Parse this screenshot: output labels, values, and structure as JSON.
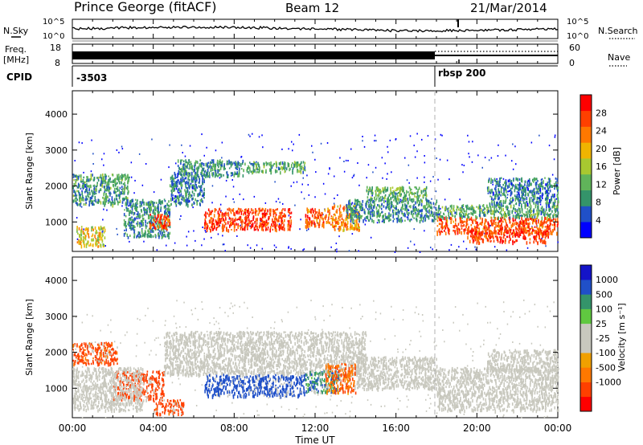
{
  "header": {
    "station": "Prince George (fitACF)",
    "beam": "Beam 12",
    "date": "21/Mar/2014"
  },
  "noise_panel": {
    "left_label": "N.Sky",
    "right_label": "N.Search",
    "ticks": [
      "10^5",
      "10^0"
    ]
  },
  "freq_panel": {
    "left_label_1": "Freq.",
    "left_label_2": "[MHz]",
    "left_ticks": [
      "18",
      "8"
    ],
    "right_label": "Nave",
    "right_ticks": [
      "60",
      "0"
    ]
  },
  "cpid_panel": {
    "label": "CPID",
    "segments": [
      {
        "time_h": 0.0,
        "text": "-3503"
      },
      {
        "time_h": 18.0,
        "text": "rbsp 200"
      }
    ]
  },
  "colors": {
    "power": [
      "#0000ff",
      "#2050c8",
      "#34946a",
      "#60b45a",
      "#a8c830",
      "#f0b400",
      "#ff7800",
      "#ff4000",
      "#ff0000"
    ],
    "velocity": [
      "#ff0000",
      "#ff4000",
      "#ff7800",
      "#f0a000",
      "#c8c8be",
      "#c8c8be",
      "#60c840",
      "#34946a",
      "#2050c8",
      "#1414c8"
    ],
    "gray_scatter": "#c8c8be"
  },
  "chart_data": [
    {
      "type": "heatmap",
      "panel": "power",
      "title": "",
      "xlabel": "",
      "ylabel": "Slant Range [km]",
      "x_unit": "hours UT",
      "xlim": [
        0,
        24
      ],
      "ylim": [
        180,
        4650
      ],
      "y_ticks": [
        1000,
        2000,
        3000,
        4000
      ],
      "y_tick_labels": [
        "1000",
        "2000",
        "3000",
        "4000"
      ],
      "colorbar": {
        "label": "Power [dB]",
        "ticks": [
          28,
          24,
          20,
          16,
          12,
          8,
          4
        ],
        "tick_labels": [
          "28",
          "24",
          "20",
          "16",
          "12",
          "8",
          "4"
        ],
        "range": [
          0,
          32
        ]
      },
      "blobs": [
        {
          "t0": 0.0,
          "t1": 2.8,
          "r0": 1500,
          "r1": 2350,
          "value": 10
        },
        {
          "t0": 0.2,
          "t1": 1.6,
          "r0": 350,
          "r1": 900,
          "value": 18
        },
        {
          "t0": 2.5,
          "t1": 4.8,
          "r0": 600,
          "r1": 1650,
          "value": 9
        },
        {
          "t0": 3.8,
          "t1": 4.8,
          "r0": 800,
          "r1": 1250,
          "value": 26
        },
        {
          "t0": 4.8,
          "t1": 6.5,
          "r0": 1500,
          "r1": 2400,
          "value": 8
        },
        {
          "t0": 5.2,
          "t1": 8.5,
          "r0": 2300,
          "r1": 2750,
          "value": 9
        },
        {
          "t0": 8.5,
          "t1": 11.5,
          "r0": 2400,
          "r1": 2700,
          "value": 11
        },
        {
          "t0": 6.5,
          "t1": 10.8,
          "r0": 800,
          "r1": 1400,
          "value": 27
        },
        {
          "t0": 11.5,
          "t1": 12.8,
          "r0": 900,
          "r1": 1400,
          "value": 25
        },
        {
          "t0": 12.8,
          "t1": 14.2,
          "r0": 800,
          "r1": 1500,
          "value": 22
        },
        {
          "t0": 13.5,
          "t1": 18.0,
          "r0": 1050,
          "r1": 1650,
          "value": 9
        },
        {
          "t0": 14.5,
          "t1": 17.5,
          "r0": 1600,
          "r1": 2000,
          "value": 12
        },
        {
          "t0": 18.0,
          "t1": 24.0,
          "r0": 700,
          "r1": 1150,
          "value": 26
        },
        {
          "t0": 19.5,
          "t1": 23.5,
          "r0": 450,
          "r1": 800,
          "value": 28
        },
        {
          "t0": 18.0,
          "t1": 24.0,
          "r0": 1150,
          "r1": 1500,
          "value": 11
        },
        {
          "t0": 20.5,
          "t1": 24.0,
          "r0": 1500,
          "r1": 2250,
          "value": 8
        }
      ]
    },
    {
      "type": "heatmap",
      "panel": "velocity",
      "title": "",
      "xlabel": "Time UT",
      "ylabel": "Slant Range [km]",
      "x_unit": "hours UT",
      "xlim": [
        0,
        24
      ],
      "ylim": [
        180,
        4650
      ],
      "x_ticks": [
        0,
        4,
        8,
        12,
        16,
        20,
        24
      ],
      "x_tick_labels": [
        "00:00",
        "04:00",
        "08:00",
        "12:00",
        "16:00",
        "20:00",
        "00:00"
      ],
      "y_ticks": [
        1000,
        2000,
        3000,
        4000
      ],
      "y_tick_labels": [
        "1000",
        "2000",
        "3000",
        "4000"
      ],
      "colorbar": {
        "label": "Velocity [m s⁻¹]",
        "ticks": [
          1000,
          500,
          100,
          25,
          -25,
          -100,
          -500,
          -1000
        ],
        "tick_labels": [
          "1000",
          "500",
          "100",
          "25",
          "-25",
          "-100",
          "-500",
          "-1000"
        ]
      },
      "blobs": [
        {
          "t0": 0.0,
          "t1": 2.2,
          "r0": 1700,
          "r1": 2300,
          "value": -150
        },
        {
          "t0": 2.0,
          "t1": 4.5,
          "r0": 700,
          "r1": 1500,
          "value": -200
        },
        {
          "t0": 4.0,
          "t1": 5.5,
          "r0": 300,
          "r1": 700,
          "value": -180
        },
        {
          "t0": 0.0,
          "t1": 3.5,
          "r0": 400,
          "r1": 1600,
          "value": 0
        },
        {
          "t0": 4.5,
          "t1": 14.5,
          "r0": 1400,
          "r1": 2600,
          "value": 0
        },
        {
          "t0": 6.5,
          "t1": 11.5,
          "r0": 800,
          "r1": 1400,
          "value": 200
        },
        {
          "t0": 11.5,
          "t1": 13.2,
          "r0": 900,
          "r1": 1500,
          "value": 80
        },
        {
          "t0": 12.5,
          "t1": 14.0,
          "r0": 900,
          "r1": 1700,
          "value": -90
        },
        {
          "t0": 14.0,
          "t1": 18.0,
          "r0": 1000,
          "r1": 1900,
          "value": 0
        },
        {
          "t0": 18.0,
          "t1": 24.0,
          "r0": 400,
          "r1": 1600,
          "value": 0
        },
        {
          "t0": 20.5,
          "t1": 24.0,
          "r0": 1500,
          "r1": 2100,
          "value": 0
        }
      ]
    }
  ]
}
